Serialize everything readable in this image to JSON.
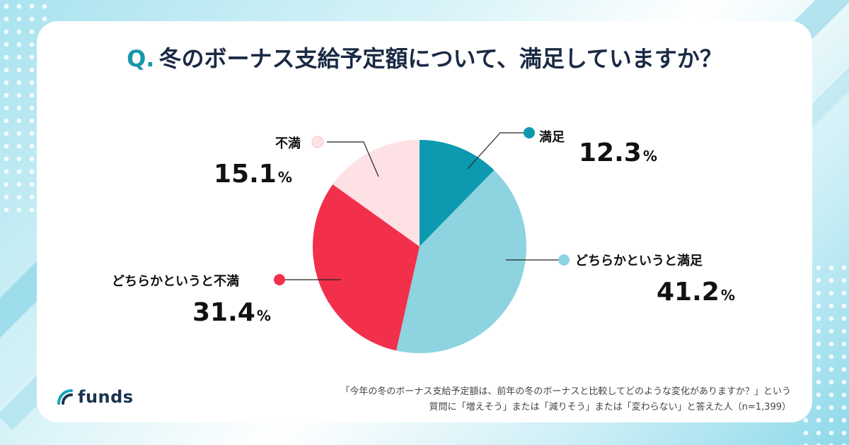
{
  "header": {
    "q_mark": "Q.",
    "title": "冬のボーナス支給予定額について、満足していますか？"
  },
  "chart_data": {
    "type": "pie",
    "title": "冬のボーナス支給予定額について、満足していますか？",
    "categories": [
      "満足",
      "どちらかというと満足",
      "どちらかというと不満",
      "不満"
    ],
    "values": [
      12.3,
      41.2,
      31.4,
      15.1
    ],
    "unit": "%",
    "colors": [
      "#0d9ab0",
      "#8dd3e0",
      "#f2304c",
      "#fde1e4"
    ],
    "start": "12 o'clock",
    "direction": "clockwise"
  },
  "labels": {
    "satisfied": {
      "name": "満足",
      "value": "12.3",
      "unit": "%"
    },
    "somewhat_satisfied": {
      "name": "どちらかというと満足",
      "value": "41.2",
      "unit": "%"
    },
    "somewhat_dissatisfied": {
      "name": "どちらかというと不満",
      "value": "31.4",
      "unit": "%"
    },
    "dissatisfied": {
      "name": "不満",
      "value": "15.1",
      "unit": "%"
    }
  },
  "brand": {
    "name": "funds"
  },
  "footnote": {
    "line1": "「今年の冬のボーナス支給予定額は、前年の冬のボーナスと比較してどのような変化がありますか？」という",
    "line2": "質問に「増えそう」または「減りそう」または「変わらない」と答えた人（n=1,399）"
  }
}
